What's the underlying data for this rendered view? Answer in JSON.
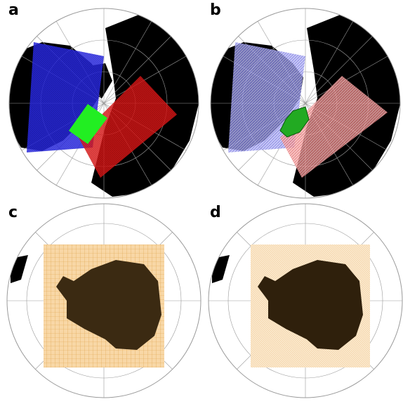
{
  "panels": [
    {
      "label": "a",
      "hemisphere": "north",
      "grid_style": "dense-filled",
      "domains": [
        "blue-domain",
        "red-domain",
        "green-domain"
      ]
    },
    {
      "label": "b",
      "hemisphere": "north",
      "grid_style": "masked-mesh",
      "domains": [
        "blue-domain",
        "red-domain",
        "green-domain"
      ]
    },
    {
      "label": "c",
      "hemisphere": "south",
      "grid_style": "coarse-mesh",
      "domains": [
        "orange-domain"
      ]
    },
    {
      "label": "d",
      "hemisphere": "south",
      "grid_style": "fine-mesh",
      "domains": [
        "orange-domain"
      ]
    }
  ],
  "colors": {
    "ocean": "#ffffff",
    "land": "#000000",
    "graticule": "#9a9a9a",
    "blue_domain": "#2222dd",
    "red_domain": "#dd1111",
    "green_domain": "#22dd22",
    "orange_domain": "#f5c688",
    "antarctica_fill": "#3b2a12"
  }
}
